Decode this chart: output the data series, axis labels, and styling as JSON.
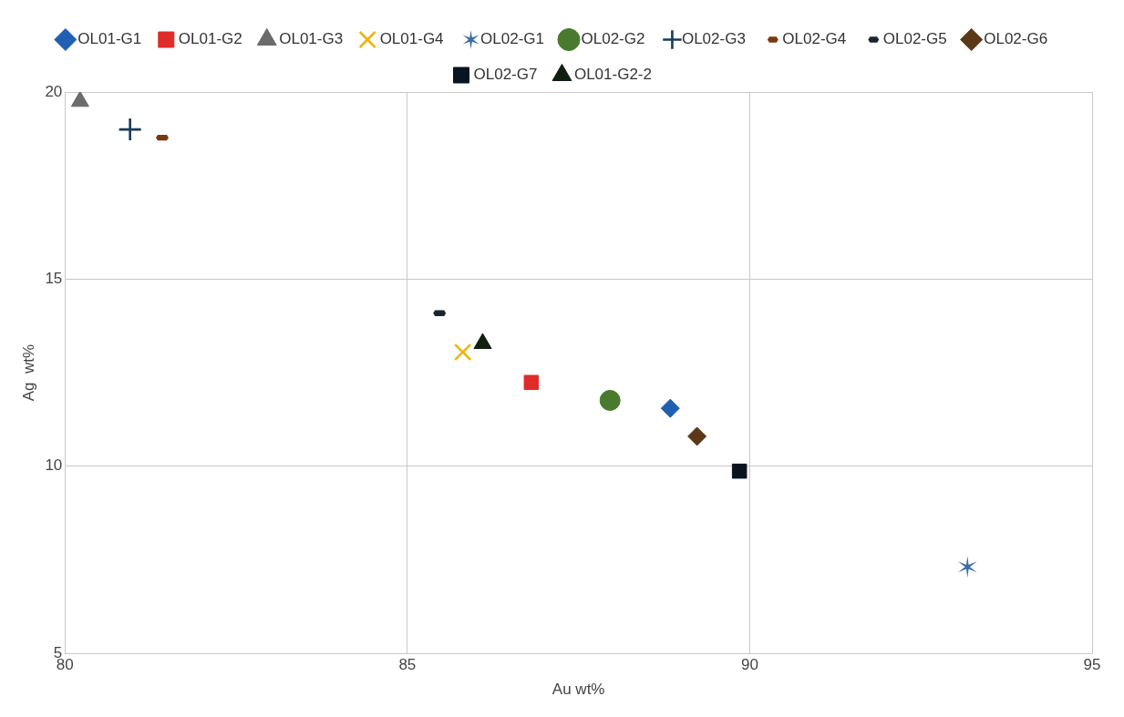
{
  "chart_data": {
    "type": "scatter",
    "xlabel": "Au wt%",
    "ylabel": "Ag  wt%",
    "xlim": [
      80,
      95
    ],
    "xticks": [
      80,
      85,
      90,
      95
    ],
    "ylim": [
      5,
      20
    ],
    "yticks": [
      5,
      10,
      15,
      20
    ],
    "grid": true,
    "legend": "top",
    "series": [
      {
        "name": "OL01-G1",
        "color": "#1f5fb4",
        "marker": "diamond",
        "x": [
          88.84
        ],
        "values": [
          11.55
        ]
      },
      {
        "name": "OL01-G2",
        "color": "#e02b2b",
        "marker": "square",
        "x": [
          86.81
        ],
        "values": [
          12.24
        ]
      },
      {
        "name": "OL01-G3",
        "color": "#6b6b6b",
        "marker": "triangle",
        "x": [
          80.22
        ],
        "values": [
          19.75
        ]
      },
      {
        "name": "OL01-G4",
        "color": "#f0b400",
        "marker": "x",
        "x": [
          85.81
        ],
        "values": [
          13.05
        ]
      },
      {
        "name": "OL02-G1",
        "color": "#3a6ea5",
        "marker": "cross",
        "x": [
          93.18
        ],
        "values": [
          7.31
        ]
      },
      {
        "name": "OL02-G2",
        "color": "#4a7a2e",
        "marker": "circle",
        "x": [
          87.96
        ],
        "values": [
          11.76
        ]
      },
      {
        "name": "OL02-G3",
        "color": "#1a3a5a",
        "marker": "plus",
        "x": [
          80.95
        ],
        "values": [
          19.0
        ]
      },
      {
        "name": "OL02-G4",
        "color": "#7a3a10",
        "x": [
          81.42
        ],
        "values": [
          18.78
        ]
      },
      {
        "name": "OL02-G5",
        "color": "#1a2530",
        "x": [
          85.47
        ],
        "values": [
          14.09
        ]
      },
      {
        "name": "OL02-G6",
        "color": "#5a3818",
        "marker": "diamond",
        "x": [
          89.23
        ],
        "values": [
          10.8
        ]
      },
      {
        "name": "OL02-G7",
        "color": "#0a1420",
        "marker": "square",
        "x": [
          89.85
        ],
        "values": [
          9.87
        ]
      },
      {
        "name": "OL01-G2-2",
        "color": "#102010",
        "marker": "triangle",
        "x": [
          86.1
        ],
        "values": [
          13.28
        ]
      }
    ]
  }
}
